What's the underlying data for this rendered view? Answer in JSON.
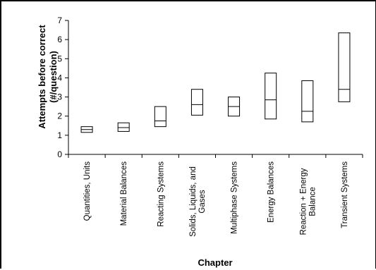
{
  "chart_data": {
    "type": "boxplot",
    "title": "",
    "xlabel": "Chapter",
    "ylabel": [
      "Attempts before correct",
      "(#/question)"
    ],
    "ylim": [
      0,
      7
    ],
    "yticks": [
      0,
      1,
      2,
      3,
      4,
      5,
      6,
      7
    ],
    "grid": false,
    "legend": "none",
    "box_color": "#000000",
    "categories": [
      "Quantities, Units",
      "Material Balances",
      "Reacting Systems",
      "Solids, Liquids, and Gases",
      "Multiphase Systems",
      "Energy Balances",
      "Reaction + Energy Balance",
      "Transient Systems"
    ],
    "category_label_lines": [
      [
        "Quantities, Units"
      ],
      [
        "Material Balances"
      ],
      [
        "Reacting Systems"
      ],
      [
        "Solids, Liquids, and",
        "Gases"
      ],
      [
        "Multiphase Systems"
      ],
      [
        "Energy Balances"
      ],
      [
        "Reaction + Energy",
        "Balance"
      ],
      [
        "Transient Systems"
      ]
    ],
    "series": [
      {
        "q1": [
          1.15,
          1.2,
          1.45,
          2.05,
          2.0,
          1.85,
          1.7,
          2.75
        ],
        "median": [
          1.3,
          1.4,
          1.75,
          2.6,
          2.5,
          2.85,
          2.25,
          3.4
        ],
        "q3": [
          1.45,
          1.65,
          2.5,
          3.4,
          3.0,
          4.25,
          3.85,
          6.35
        ]
      }
    ]
  }
}
